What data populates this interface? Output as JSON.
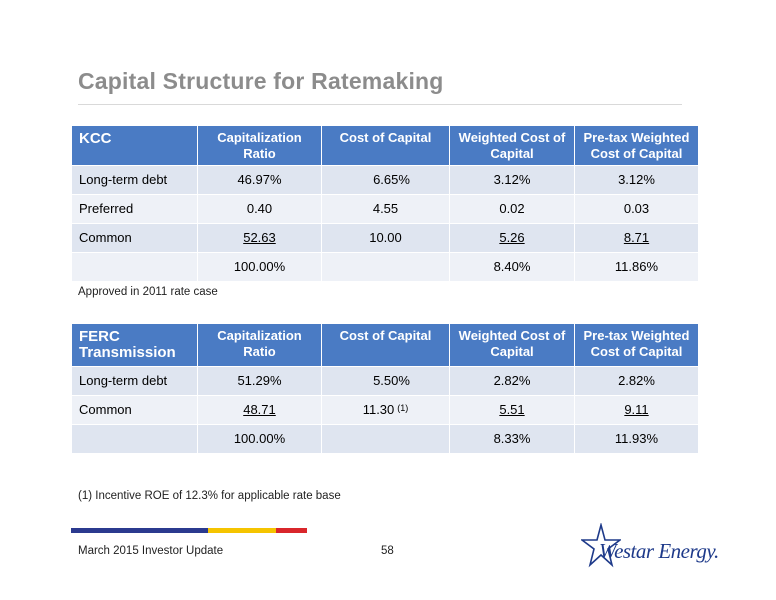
{
  "title": "Capital Structure for Ratemaking",
  "tables": [
    {
      "headers": [
        "KCC",
        "Capitalization Ratio",
        "Cost of Capital",
        "Weighted Cost of Capital",
        "Pre-tax Weighted Cost of Capital"
      ],
      "rows": [
        [
          "Long-term debt",
          "46.97%",
          "6.65%",
          "3.12%",
          "3.12%"
        ],
        [
          "Preferred",
          "0.40",
          "4.55",
          "0.02",
          "0.03"
        ],
        [
          "Common",
          "52.63",
          "10.00",
          "5.26",
          "8.71"
        ],
        [
          "",
          "100.00%",
          "",
          "8.40%",
          "11.86%"
        ]
      ],
      "note": "Approved in 2011 rate case"
    },
    {
      "headers": [
        "FERC Transmission",
        "Capitalization Ratio",
        "Cost of Capital",
        "Weighted Cost of Capital",
        "Pre-tax Weighted Cost of Capital"
      ],
      "rows": [
        [
          "Long-term debt",
          "51.29%",
          "5.50%",
          "2.82%",
          "2.82%"
        ],
        [
          "Common",
          "48.71",
          "11.30",
          "5.51",
          "9.11"
        ],
        [
          "",
          "100.00%",
          "",
          "8.33%",
          "11.93%"
        ]
      ],
      "footnote_marker": "(1)"
    }
  ],
  "footnote": "(1) Incentive ROE of 12.3% for applicable rate base",
  "footer": {
    "left": "March 2015 Investor Update",
    "page": "58"
  },
  "logo": {
    "text": "Westar Energy.",
    "icon": "star-icon"
  },
  "colors": {
    "header_bg": "#4a7bc4",
    "row_light": "#dfe5f0",
    "row_lighter": "#eef1f7",
    "title": "#8c8c8c",
    "stripe_blue": "#2b3a8f",
    "stripe_yellow": "#f5c400",
    "stripe_red": "#d9262b"
  }
}
